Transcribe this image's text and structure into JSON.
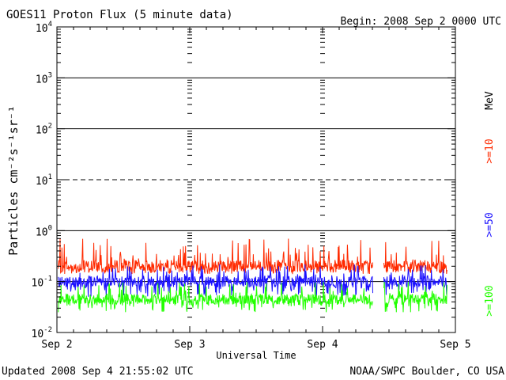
{
  "chart_data": {
    "type": "line",
    "title": "GOES11 Proton Flux (5 minute data)",
    "begin_label": "Begin: 2008 Sep 2 0000 UTC",
    "ylabel": "Particles cm⁻²s⁻¹sr⁻¹",
    "xlabel": "Universal Time",
    "x_ticks": [
      "Sep 2",
      "Sep 3",
      "Sep 4",
      "Sep 5"
    ],
    "xlim_days": [
      0,
      3
    ],
    "y_scale": "log",
    "ylim": [
      0.01,
      10000
    ],
    "y_tick_labels": [
      {
        "base": "10",
        "exp": "-2"
      },
      {
        "base": "10",
        "exp": "-1"
      },
      {
        "base": "10",
        "exp": "0"
      },
      {
        "base": "10",
        "exp": "1"
      },
      {
        "base": "10",
        "exp": "2"
      },
      {
        "base": "10",
        "exp": "3"
      },
      {
        "base": "10",
        "exp": "4"
      }
    ],
    "reference_lines": [
      {
        "value": 0.1,
        "style": "solid"
      },
      {
        "value": 1,
        "style": "solid"
      },
      {
        "value": 10,
        "style": "dashed"
      },
      {
        "value": 100,
        "style": "solid"
      },
      {
        "value": 1000,
        "style": "solid"
      }
    ],
    "data_gap_days": [
      2.38,
      2.46
    ],
    "series": [
      {
        "name": ">=10",
        "color": "#ff2a00",
        "baseline": 0.2,
        "low": 0.14,
        "high": 0.7
      },
      {
        "name": ">=50",
        "color": "#1a10ff",
        "baseline": 0.1,
        "low": 0.05,
        "high": 0.22
      },
      {
        "name": ">=100",
        "color": "#22ff00",
        "baseline": 0.045,
        "low": 0.025,
        "high": 0.1
      }
    ],
    "units_label": "MeV",
    "annotations": {
      "updated": "Updated 2008 Sep  4 21:55:02 UTC",
      "source": "NOAA/SWPC Boulder, CO USA"
    }
  }
}
